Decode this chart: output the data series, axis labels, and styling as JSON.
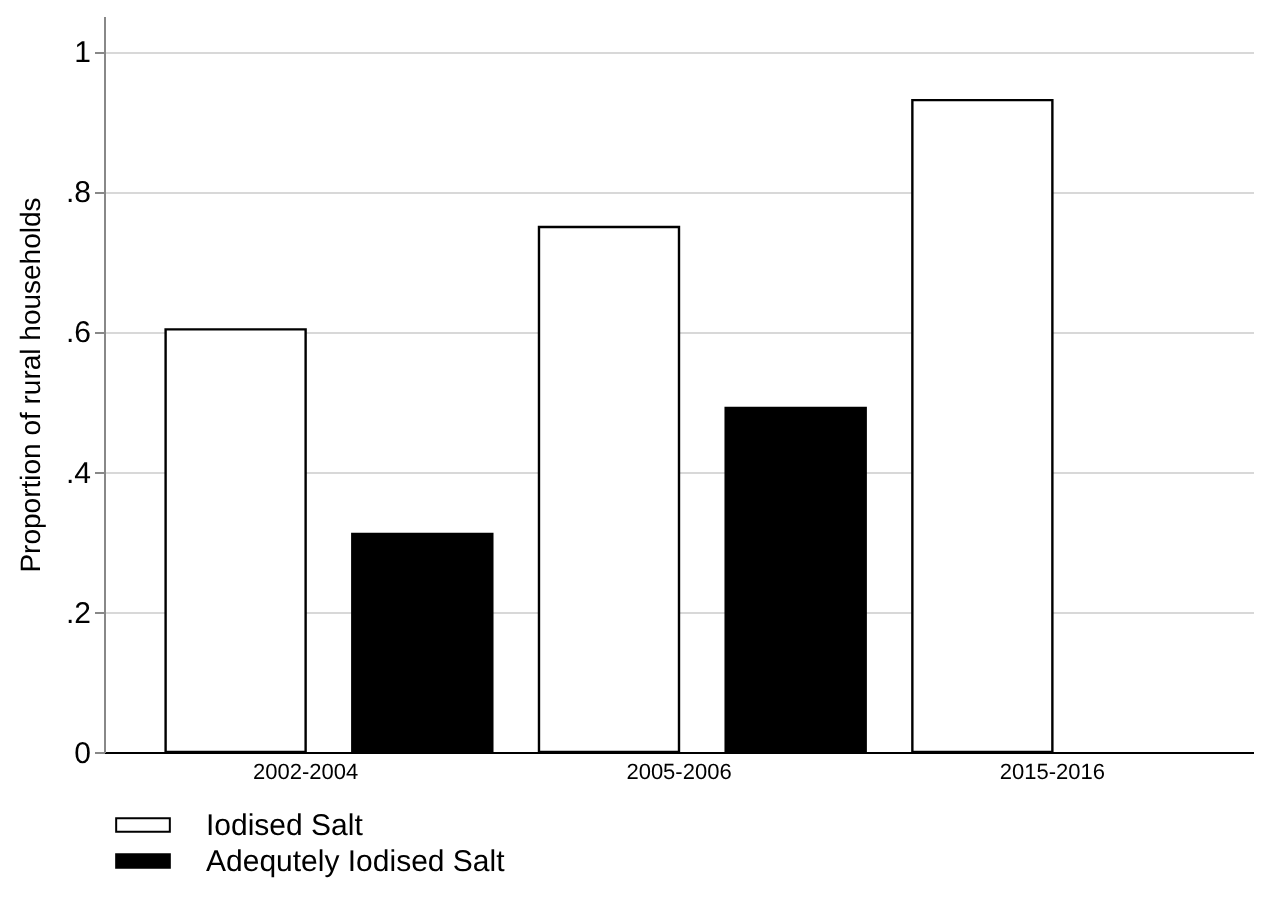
{
  "chart_data": {
    "type": "bar",
    "ylabel": "Proportion of rural households",
    "categories": [
      "2002-2004",
      "2005-2006",
      "2015-2016"
    ],
    "series": [
      {
        "name": "Iodised Salt",
        "color": "#ffffff",
        "values": [
          0.603,
          0.749,
          0.93
        ]
      },
      {
        "name": "Adequtely Iodised Salt",
        "color": "#000000",
        "values": [
          0.311,
          0.491,
          null
        ]
      }
    ],
    "ylim": [
      0,
      1.05
    ],
    "yticks": [
      0,
      {
        "value": 0.2,
        "label": ".2"
      },
      {
        "value": 0.4,
        "label": ".4"
      },
      {
        "value": 0.6,
        "label": ".6"
      },
      {
        "value": 0.8,
        "label": ".8"
      },
      1
    ],
    "grid": "y",
    "legend": "bottom"
  }
}
